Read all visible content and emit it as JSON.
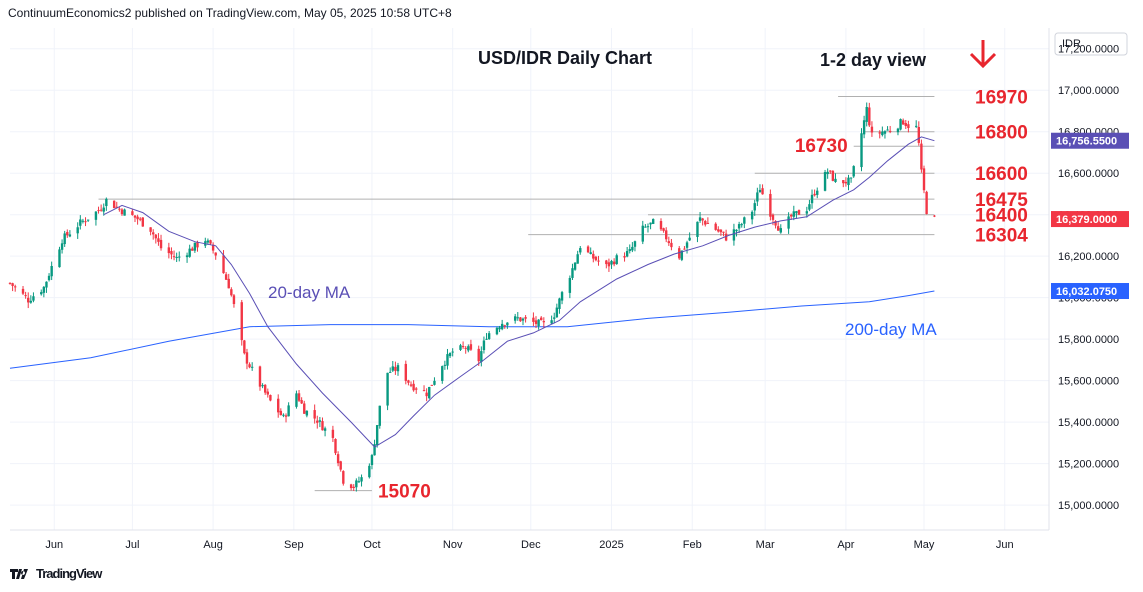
{
  "header": {
    "published": "ContinuumEconomics2 published on TradingView.com, May 05, 2025 10:58 UTC+8"
  },
  "footer": {
    "brand": "TradingView",
    "logo_icon": "tradingview-logo-icon"
  },
  "chart_data": {
    "type": "candlestick",
    "title": "USD/IDR Daily Chart",
    "view_label": "1-2 day view",
    "view_direction_icon": "arrow-down-icon",
    "currency_label": "IDR",
    "x_tick_labels": [
      "Jun",
      "Jul",
      "Aug",
      "Sep",
      "Oct",
      "Nov",
      "Dec",
      "2025",
      "Feb",
      "Mar",
      "Apr",
      "May",
      "Jun"
    ],
    "y_ticks": [
      {
        "value": 17200,
        "label": "17,200.0000"
      },
      {
        "value": 17000,
        "label": "17,000.0000"
      },
      {
        "value": 16800,
        "label": "16,800.0000"
      },
      {
        "value": 16600,
        "label": "16,600.0000"
      },
      {
        "value": 16400,
        "label": "16,400.0000"
      },
      {
        "value": 16200,
        "label": "16,200.0000"
      },
      {
        "value": 16000,
        "label": "16,000.0000"
      },
      {
        "value": 15800,
        "label": "15,800.0000"
      },
      {
        "value": 15600,
        "label": "15,600.0000"
      },
      {
        "value": 15400,
        "label": "15,400.0000"
      },
      {
        "value": 15200,
        "label": "15,200.0000"
      },
      {
        "value": 15000,
        "label": "15,000.0000"
      }
    ],
    "ylim": [
      14880,
      17300
    ],
    "xlim": [
      "2024-05-15",
      "2025-06-18"
    ],
    "price_badges": [
      {
        "value": 16756.55,
        "label": "16,756.5500",
        "color": "#5a4fb5"
      },
      {
        "value": 16379,
        "label": "16,379.0000",
        "color": "#f23645"
      },
      {
        "value": 16032.075,
        "label": "16,032.0750",
        "color": "#2962ff"
      }
    ],
    "levels": [
      {
        "value": 16970,
        "label": "16970",
        "x_from": "2025-03-29",
        "x_to": "2025-05-05"
      },
      {
        "value": 16800,
        "label": "16800",
        "x_from": "2025-04-08",
        "x_to": "2025-05-05"
      },
      {
        "value": 16730,
        "label": "16730",
        "x_from": "2025-04-04",
        "x_to": "2025-05-05"
      },
      {
        "value": 16600,
        "label": "16600",
        "x_from": "2025-02-25",
        "x_to": "2025-05-05"
      },
      {
        "value": 16475,
        "label": "16475",
        "x_from": "2024-06-18",
        "x_to": "2025-05-05"
      },
      {
        "value": 16400,
        "label": "16400",
        "x_from": "2025-01-15",
        "x_to": "2025-05-05"
      },
      {
        "value": 16304,
        "label": "16304",
        "x_from": "2024-11-30",
        "x_to": "2025-05-05"
      },
      {
        "value": 15070,
        "label": "15070",
        "x_from": "2024-09-09",
        "x_to": "2024-10-01"
      }
    ],
    "ma_labels": {
      "ma20": "20-day MA",
      "ma200": "200-day MA"
    },
    "colors": {
      "up": "#089981",
      "down": "#f23645",
      "ma20": "#5a4fb5",
      "ma200": "#2962ff",
      "level": "#e8262e"
    },
    "price_path": [
      [
        "2024-05-15",
        16070
      ],
      [
        "2024-05-22",
        15990
      ],
      [
        "2024-05-28",
        16050
      ],
      [
        "2024-06-04",
        16280
      ],
      [
        "2024-06-11",
        16360
      ],
      [
        "2024-06-18",
        16420
      ],
      [
        "2024-06-21",
        16470
      ],
      [
        "2024-06-27",
        16420
      ],
      [
        "2024-07-03",
        16380
      ],
      [
        "2024-07-08",
        16330
      ],
      [
        "2024-07-12",
        16240
      ],
      [
        "2024-07-18",
        16190
      ],
      [
        "2024-07-23",
        16230
      ],
      [
        "2024-07-29",
        16280
      ],
      [
        "2024-08-02",
        16210
      ],
      [
        "2024-08-07",
        16060
      ],
      [
        "2024-08-09",
        15960
      ],
      [
        "2024-08-13",
        15720
      ],
      [
        "2024-08-19",
        15580
      ],
      [
        "2024-08-23",
        15500
      ],
      [
        "2024-08-28",
        15420
      ],
      [
        "2024-09-02",
        15540
      ],
      [
        "2024-09-05",
        15460
      ],
      [
        "2024-09-10",
        15410
      ],
      [
        "2024-09-16",
        15320
      ],
      [
        "2024-09-20",
        15120
      ],
      [
        "2024-09-24",
        15090
      ],
      [
        "2024-09-27",
        15130
      ],
      [
        "2024-10-01",
        15230
      ],
      [
        "2024-10-04",
        15470
      ],
      [
        "2024-10-07",
        15640
      ],
      [
        "2024-10-11",
        15660
      ],
      [
        "2024-10-16",
        15580
      ],
      [
        "2024-10-22",
        15540
      ],
      [
        "2024-10-28",
        15680
      ],
      [
        "2024-11-01",
        15740
      ],
      [
        "2024-11-06",
        15760
      ],
      [
        "2024-11-11",
        15700
      ],
      [
        "2024-11-14",
        15820
      ],
      [
        "2024-11-20",
        15880
      ],
      [
        "2024-11-26",
        15900
      ],
      [
        "2024-12-02",
        15880
      ],
      [
        "2024-12-06",
        15870
      ],
      [
        "2024-12-10",
        15920
      ],
      [
        "2024-12-13",
        16020
      ],
      [
        "2024-12-17",
        16140
      ],
      [
        "2024-12-20",
        16250
      ],
      [
        "2024-12-24",
        16200
      ],
      [
        "2024-12-30",
        16150
      ],
      [
        "2025-01-03",
        16190
      ],
      [
        "2025-01-08",
        16220
      ],
      [
        "2025-01-13",
        16330
      ],
      [
        "2025-01-17",
        16360
      ],
      [
        "2025-01-22",
        16290
      ],
      [
        "2025-01-27",
        16200
      ],
      [
        "2025-01-31",
        16290
      ],
      [
        "2025-02-04",
        16380
      ],
      [
        "2025-02-10",
        16330
      ],
      [
        "2025-02-14",
        16290
      ],
      [
        "2025-02-19",
        16340
      ],
      [
        "2025-02-24",
        16420
      ],
      [
        "2025-02-27",
        16530
      ],
      [
        "2025-03-03",
        16410
      ],
      [
        "2025-03-07",
        16320
      ],
      [
        "2025-03-11",
        16390
      ],
      [
        "2025-03-17",
        16430
      ],
      [
        "2025-03-20",
        16510
      ],
      [
        "2025-03-25",
        16610
      ],
      [
        "2025-03-28",
        16560
      ],
      [
        "2025-04-03",
        16560
      ],
      [
        "2025-04-08",
        16850
      ],
      [
        "2025-04-09",
        16910
      ],
      [
        "2025-04-11",
        16780
      ],
      [
        "2025-04-15",
        16800
      ],
      [
        "2025-04-18",
        16810
      ],
      [
        "2025-04-23",
        16850
      ],
      [
        "2025-04-25",
        16830
      ],
      [
        "2025-04-28",
        16820
      ],
      [
        "2025-04-29",
        16740
      ],
      [
        "2025-04-30",
        16600
      ],
      [
        "2025-05-02",
        16420
      ],
      [
        "2025-05-05",
        16379
      ]
    ],
    "ma20_path": [
      [
        "2024-06-20",
        16400
      ],
      [
        "2024-06-27",
        16445
      ],
      [
        "2024-07-05",
        16410
      ],
      [
        "2024-07-15",
        16320
      ],
      [
        "2024-07-25",
        16270
      ],
      [
        "2024-08-02",
        16250
      ],
      [
        "2024-08-08",
        16160
      ],
      [
        "2024-08-15",
        16020
      ],
      [
        "2024-08-22",
        15860
      ],
      [
        "2024-09-02",
        15680
      ],
      [
        "2024-09-12",
        15540
      ],
      [
        "2024-09-23",
        15400
      ],
      [
        "2024-10-02",
        15280
      ],
      [
        "2024-10-10",
        15340
      ],
      [
        "2024-10-17",
        15430
      ],
      [
        "2024-10-25",
        15530
      ],
      [
        "2024-11-04",
        15620
      ],
      [
        "2024-11-13",
        15700
      ],
      [
        "2024-11-22",
        15790
      ],
      [
        "2024-12-02",
        15830
      ],
      [
        "2024-12-12",
        15890
      ],
      [
        "2024-12-20",
        15980
      ],
      [
        "2025-01-03",
        16090
      ],
      [
        "2025-01-15",
        16160
      ],
      [
        "2025-01-25",
        16210
      ],
      [
        "2025-02-05",
        16250
      ],
      [
        "2025-02-15",
        16300
      ],
      [
        "2025-02-25",
        16340
      ],
      [
        "2025-03-07",
        16370
      ],
      [
        "2025-03-17",
        16390
      ],
      [
        "2025-03-27",
        16470
      ],
      [
        "2025-04-04",
        16520
      ],
      [
        "2025-04-10",
        16580
      ],
      [
        "2025-04-17",
        16660
      ],
      [
        "2025-04-25",
        16740
      ],
      [
        "2025-04-30",
        16775
      ],
      [
        "2025-05-05",
        16756.55
      ]
    ],
    "ma200_path": [
      [
        "2024-05-15",
        15660
      ],
      [
        "2024-06-15",
        15710
      ],
      [
        "2024-07-15",
        15790
      ],
      [
        "2024-08-15",
        15860
      ],
      [
        "2024-09-15",
        15870
      ],
      [
        "2024-10-15",
        15870
      ],
      [
        "2024-11-15",
        15860
      ],
      [
        "2024-12-15",
        15860
      ],
      [
        "2025-01-15",
        15900
      ],
      [
        "2025-02-15",
        15930
      ],
      [
        "2025-03-15",
        15960
      ],
      [
        "2025-04-10",
        15980
      ],
      [
        "2025-04-25",
        16010
      ],
      [
        "2025-05-05",
        16032.075
      ]
    ]
  }
}
